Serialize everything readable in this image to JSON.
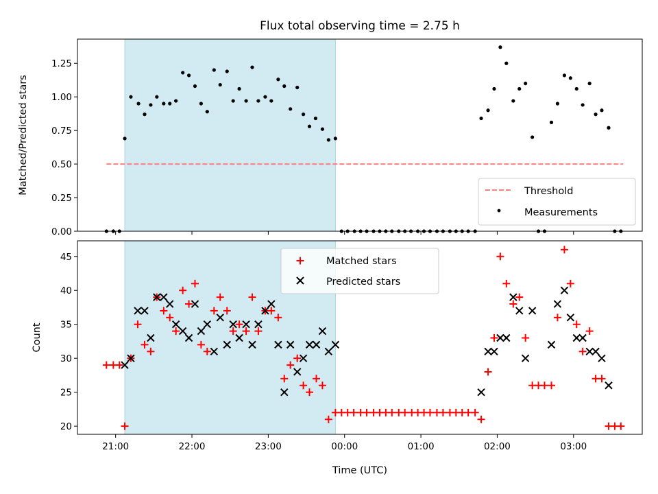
{
  "chart_data": {
    "title": "Flux total observing time = 2.75 h",
    "xlabel": "Time (UTC)",
    "x_unit": "hours after 21:00 UTC",
    "xlim": [
      -0.5,
      6.9
    ],
    "x_ticks": [
      {
        "x": 0,
        "label": "21:00"
      },
      {
        "x": 1,
        "label": "22:00"
      },
      {
        "x": 2,
        "label": "23:00"
      },
      {
        "x": 3,
        "label": "00:00"
      },
      {
        "x": 4,
        "label": "01:00"
      },
      {
        "x": 5,
        "label": "02:00"
      },
      {
        "x": 6,
        "label": "03:00"
      }
    ],
    "shaded_interval": [
      0.12,
      2.88
    ],
    "shade_color": "#add8e6",
    "panels": [
      {
        "type": "scatter",
        "ylabel": "Matched/Predicted stars",
        "ylim": [
          0,
          1.43
        ],
        "yticks": [
          0.0,
          0.25,
          0.5,
          0.75,
          1.0,
          1.25
        ],
        "ytick_labels": [
          "0.00",
          "0.25",
          "0.50",
          "0.75",
          "1.00",
          "1.25"
        ],
        "threshold": {
          "name": "Threshold",
          "y": 0.5,
          "x_range": [
            -0.12,
            6.65
          ],
          "color": "#ff7f7f"
        },
        "series": [
          {
            "name": "Measurements",
            "color": "#000000",
            "points": [
              [
                -0.12,
                0.0
              ],
              [
                -0.03,
                0.0
              ],
              [
                0.05,
                0.0
              ],
              [
                0.12,
                0.69
              ],
              [
                0.2,
                1.0
              ],
              [
                0.3,
                0.95
              ],
              [
                0.38,
                0.87
              ],
              [
                0.46,
                0.94
              ],
              [
                0.54,
                1.0
              ],
              [
                0.63,
                0.95
              ],
              [
                0.71,
                0.95
              ],
              [
                0.79,
                0.97
              ],
              [
                0.88,
                1.18
              ],
              [
                0.96,
                1.16
              ],
              [
                1.04,
                1.08
              ],
              [
                1.12,
                0.95
              ],
              [
                1.2,
                0.89
              ],
              [
                1.29,
                1.2
              ],
              [
                1.37,
                1.09
              ],
              [
                1.46,
                1.19
              ],
              [
                1.54,
                0.97
              ],
              [
                1.62,
                1.06
              ],
              [
                1.71,
                0.97
              ],
              [
                1.79,
                1.22
              ],
              [
                1.87,
                0.97
              ],
              [
                1.96,
                1.0
              ],
              [
                2.04,
                0.97
              ],
              [
                2.13,
                1.13
              ],
              [
                2.21,
                1.08
              ],
              [
                2.29,
                0.91
              ],
              [
                2.38,
                1.07
              ],
              [
                2.46,
                0.87
              ],
              [
                2.54,
                0.78
              ],
              [
                2.62,
                0.84
              ],
              [
                2.71,
                0.76
              ],
              [
                2.79,
                0.68
              ],
              [
                2.88,
                0.69
              ],
              [
                2.96,
                0.0
              ],
              [
                3.04,
                0.0
              ],
              [
                3.13,
                0.0
              ],
              [
                3.21,
                0.0
              ],
              [
                3.29,
                0.0
              ],
              [
                3.38,
                0.0
              ],
              [
                3.46,
                0.0
              ],
              [
                3.54,
                0.0
              ],
              [
                3.62,
                0.0
              ],
              [
                3.71,
                0.0
              ],
              [
                3.79,
                0.0
              ],
              [
                3.87,
                0.0
              ],
              [
                3.96,
                0.0
              ],
              [
                4.04,
                0.0
              ],
              [
                4.12,
                0.0
              ],
              [
                4.21,
                0.0
              ],
              [
                4.29,
                0.0
              ],
              [
                4.38,
                0.0
              ],
              [
                4.46,
                0.0
              ],
              [
                4.54,
                0.0
              ],
              [
                4.62,
                0.0
              ],
              [
                4.71,
                0.0
              ],
              [
                4.79,
                0.84
              ],
              [
                4.88,
                0.9
              ],
              [
                4.96,
                1.06
              ],
              [
                5.04,
                1.37
              ],
              [
                5.12,
                1.25
              ],
              [
                5.21,
                0.97
              ],
              [
                5.29,
                1.06
              ],
              [
                5.37,
                1.1
              ],
              [
                5.46,
                0.7
              ],
              [
                5.54,
                0.0
              ],
              [
                5.62,
                0.0
              ],
              [
                5.71,
                0.81
              ],
              [
                5.79,
                0.95
              ],
              [
                5.88,
                1.16
              ],
              [
                5.96,
                1.14
              ],
              [
                6.04,
                1.06
              ],
              [
                6.12,
                0.94
              ],
              [
                6.21,
                1.1
              ],
              [
                6.29,
                0.87
              ],
              [
                6.37,
                0.9
              ],
              [
                6.46,
                0.77
              ],
              [
                6.54,
                0.0
              ],
              [
                6.62,
                0.0
              ]
            ]
          }
        ],
        "legend": {
          "position": "lower right",
          "entries": [
            "Threshold",
            "Measurements"
          ]
        }
      },
      {
        "type": "scatter",
        "ylabel": "Count",
        "ylim": [
          18.8,
          47.3
        ],
        "yticks": [
          20,
          25,
          30,
          35,
          40,
          45
        ],
        "ytick_labels": [
          "20",
          "25",
          "30",
          "35",
          "40",
          "45"
        ],
        "series": [
          {
            "name": "Matched stars",
            "marker": "+",
            "color": "#ff0000",
            "points": [
              [
                -0.12,
                29
              ],
              [
                -0.03,
                29
              ],
              [
                0.05,
                29
              ],
              [
                0.12,
                20
              ],
              [
                0.2,
                30
              ],
              [
                0.29,
                35
              ],
              [
                0.38,
                32
              ],
              [
                0.46,
                31
              ],
              [
                0.54,
                39
              ],
              [
                0.63,
                37
              ],
              [
                0.71,
                36
              ],
              [
                0.79,
                34
              ],
              [
                0.88,
                40
              ],
              [
                0.96,
                38
              ],
              [
                1.04,
                41
              ],
              [
                1.12,
                32
              ],
              [
                1.2,
                31
              ],
              [
                1.29,
                37
              ],
              [
                1.37,
                39
              ],
              [
                1.46,
                37
              ],
              [
                1.54,
                34
              ],
              [
                1.62,
                35
              ],
              [
                1.71,
                34
              ],
              [
                1.79,
                39
              ],
              [
                1.87,
                34
              ],
              [
                1.96,
                37
              ],
              [
                2.04,
                37
              ],
              [
                2.13,
                36
              ],
              [
                2.21,
                27
              ],
              [
                2.29,
                29
              ],
              [
                2.38,
                30
              ],
              [
                2.46,
                26
              ],
              [
                2.54,
                25
              ],
              [
                2.63,
                27
              ],
              [
                2.71,
                26
              ],
              [
                2.79,
                21
              ],
              [
                2.88,
                22
              ],
              [
                2.96,
                22
              ],
              [
                3.04,
                22
              ],
              [
                3.12,
                22
              ],
              [
                3.21,
                22
              ],
              [
                3.29,
                22
              ],
              [
                3.38,
                22
              ],
              [
                3.46,
                22
              ],
              [
                3.54,
                22
              ],
              [
                3.62,
                22
              ],
              [
                3.71,
                22
              ],
              [
                3.79,
                22
              ],
              [
                3.88,
                22
              ],
              [
                3.96,
                22
              ],
              [
                4.04,
                22
              ],
              [
                4.12,
                22
              ],
              [
                4.21,
                22
              ],
              [
                4.29,
                22
              ],
              [
                4.38,
                22
              ],
              [
                4.46,
                22
              ],
              [
                4.54,
                22
              ],
              [
                4.62,
                22
              ],
              [
                4.71,
                22
              ],
              [
                4.79,
                21
              ],
              [
                4.88,
                28
              ],
              [
                4.96,
                33
              ],
              [
                5.04,
                45
              ],
              [
                5.12,
                41
              ],
              [
                5.21,
                38
              ],
              [
                5.29,
                39
              ],
              [
                5.37,
                33
              ],
              [
                5.46,
                26
              ],
              [
                5.54,
                26
              ],
              [
                5.62,
                26
              ],
              [
                5.71,
                26
              ],
              [
                5.79,
                36
              ],
              [
                5.88,
                46
              ],
              [
                5.96,
                41
              ],
              [
                6.04,
                35
              ],
              [
                6.12,
                31
              ],
              [
                6.21,
                34
              ],
              [
                6.29,
                27
              ],
              [
                6.37,
                27
              ],
              [
                6.46,
                20
              ],
              [
                6.54,
                20
              ],
              [
                6.62,
                20
              ]
            ]
          },
          {
            "name": "Predicted stars",
            "marker": "x",
            "color": "#000000",
            "points": [
              [
                0.12,
                29
              ],
              [
                0.2,
                30
              ],
              [
                0.29,
                37
              ],
              [
                0.38,
                37
              ],
              [
                0.46,
                33
              ],
              [
                0.54,
                39
              ],
              [
                0.63,
                39
              ],
              [
                0.71,
                38
              ],
              [
                0.79,
                35
              ],
              [
                0.88,
                34
              ],
              [
                0.96,
                33
              ],
              [
                1.04,
                38
              ],
              [
                1.12,
                34
              ],
              [
                1.2,
                35
              ],
              [
                1.29,
                31
              ],
              [
                1.37,
                36
              ],
              [
                1.46,
                32
              ],
              [
                1.54,
                35
              ],
              [
                1.62,
                33
              ],
              [
                1.71,
                35
              ],
              [
                1.79,
                32
              ],
              [
                1.87,
                35
              ],
              [
                1.96,
                37
              ],
              [
                2.04,
                38
              ],
              [
                2.13,
                32
              ],
              [
                2.21,
                25
              ],
              [
                2.29,
                32
              ],
              [
                2.38,
                28
              ],
              [
                2.46,
                30
              ],
              [
                2.54,
                32
              ],
              [
                2.63,
                32
              ],
              [
                2.71,
                34
              ],
              [
                2.79,
                31
              ],
              [
                2.88,
                32
              ],
              [
                4.79,
                25
              ],
              [
                4.88,
                31
              ],
              [
                4.96,
                31
              ],
              [
                5.04,
                33
              ],
              [
                5.12,
                33
              ],
              [
                5.21,
                39
              ],
              [
                5.29,
                37
              ],
              [
                5.37,
                30
              ],
              [
                5.46,
                37
              ],
              [
                5.71,
                32
              ],
              [
                5.79,
                38
              ],
              [
                5.88,
                40
              ],
              [
                5.96,
                36
              ],
              [
                6.04,
                33
              ],
              [
                6.12,
                33
              ],
              [
                6.21,
                31
              ],
              [
                6.29,
                31
              ],
              [
                6.37,
                30
              ],
              [
                6.46,
                26
              ]
            ]
          }
        ],
        "legend": {
          "position": "upper center",
          "entries": [
            "Matched stars",
            "Predicted stars"
          ]
        }
      }
    ]
  }
}
